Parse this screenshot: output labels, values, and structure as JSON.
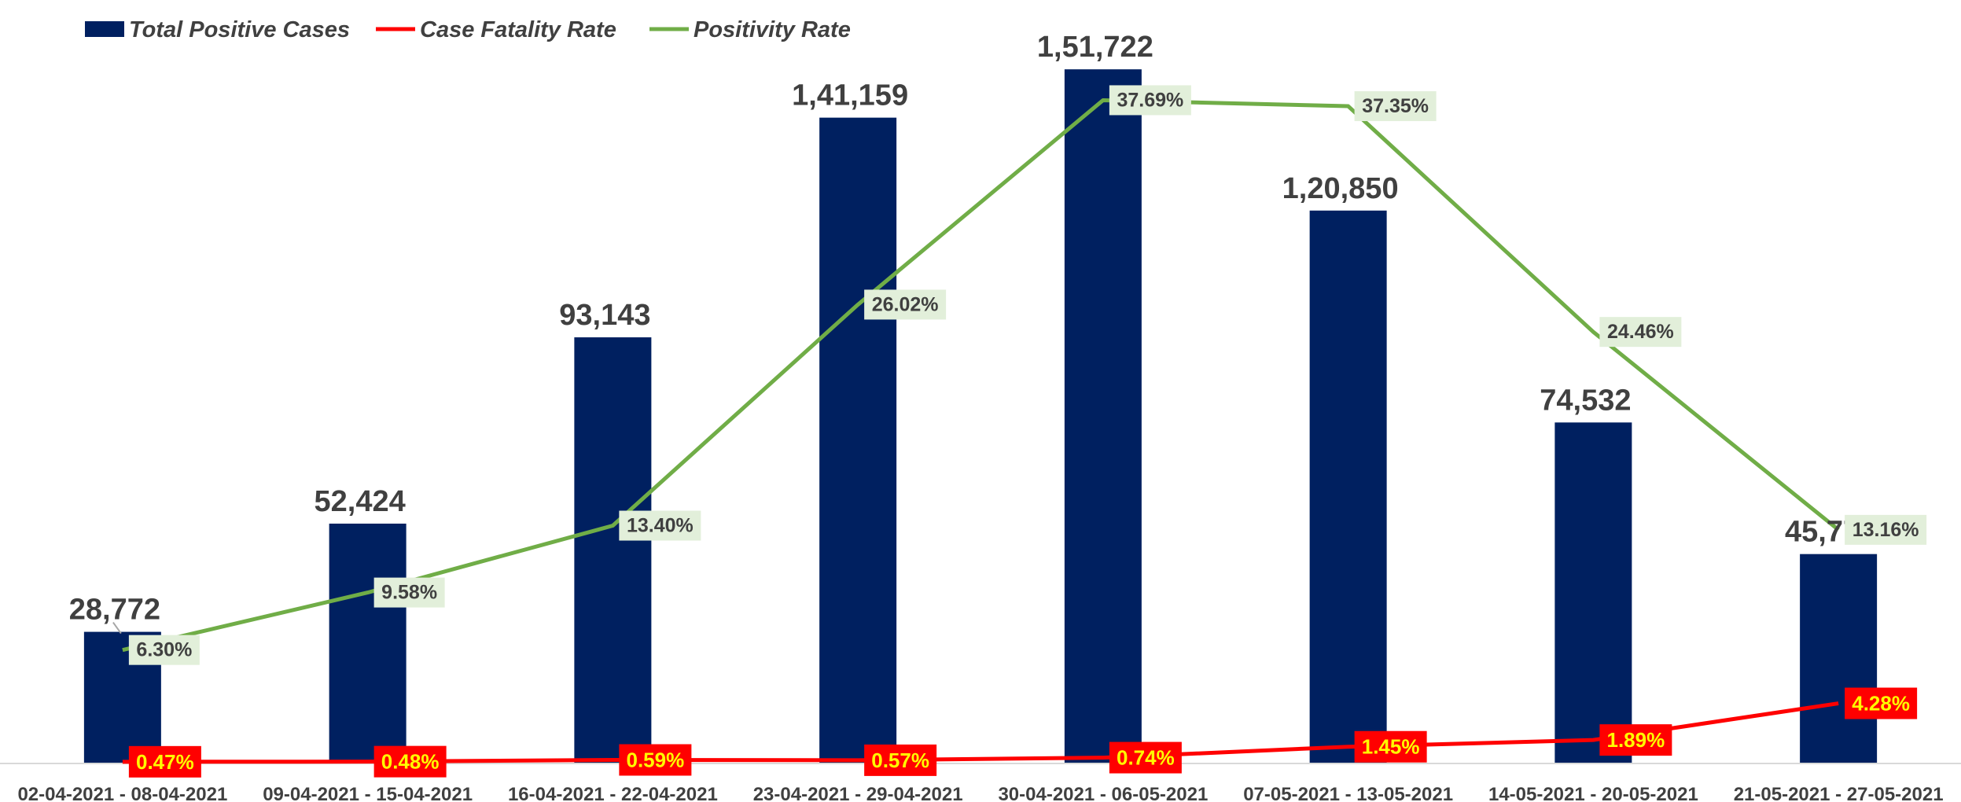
{
  "chart_data": {
    "type": "bar",
    "title": "",
    "xlabel": "",
    "ylabel": "",
    "categories": [
      "02-04-2021 - 08-04-2021",
      "09-04-2021 - 15-04-2021",
      "16-04-2021 - 22-04-2021",
      "23-04-2021 - 29-04-2021",
      "30-04-2021 - 06-05-2021",
      "07-05-2021 - 13-05-2021",
      "14-05-2021 - 20-05-2021",
      "21-05-2021 - 27-05-2021"
    ],
    "legend_position": "top-left",
    "grid": false,
    "series": [
      {
        "name": "Total Positive Cases",
        "type": "bar",
        "axis": "primary",
        "color": "#002060",
        "values": [
          28772,
          52424,
          93143,
          141159,
          151722,
          120850,
          74532,
          45770
        ],
        "labels": [
          "28,772",
          "52,424",
          "93,143",
          "1,41,159",
          "1,51,722",
          "1,20,850",
          "74,532",
          "45,770"
        ]
      },
      {
        "name": "Case Fatality Rate",
        "type": "line",
        "axis": "secondary",
        "color": "#ff0000",
        "label_fill": "#ff0000",
        "label_text_color": "#ffff00",
        "values": [
          0.47,
          0.48,
          0.59,
          0.57,
          0.74,
          1.45,
          1.89,
          4.28
        ],
        "labels": [
          "0.47%",
          "0.48%",
          "0.59%",
          "0.57%",
          "0.74%",
          "1.45%",
          "1.89%",
          "4.28%"
        ]
      },
      {
        "name": "Positivity Rate",
        "type": "line",
        "axis": "secondary",
        "color": "#70ad47",
        "label_fill": "#e2efda",
        "values": [
          6.3,
          9.58,
          13.4,
          26.02,
          37.69,
          37.35,
          24.46,
          13.16
        ],
        "labels": [
          "6.30%",
          "9.58%",
          "13.40%",
          "26.02%",
          "37.69%",
          "37.35%",
          "24.46%",
          "13.16%"
        ]
      }
    ],
    "ylim": [
      0,
      160000
    ],
    "y2lim": [
      0,
      40
    ]
  }
}
